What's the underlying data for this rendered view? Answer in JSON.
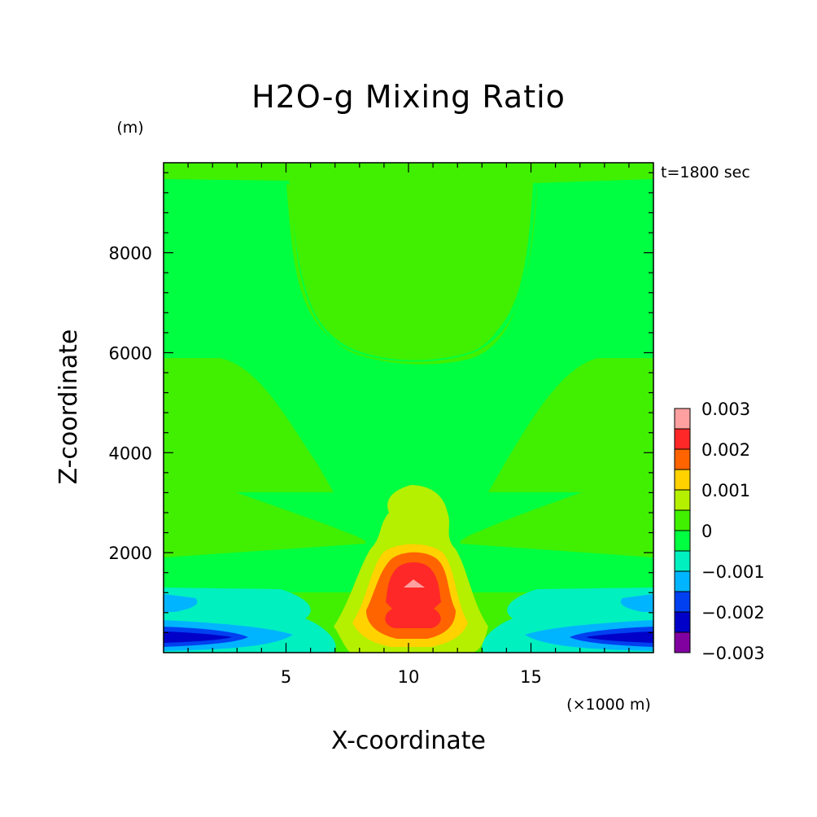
{
  "chart_data": {
    "type": "heatmap",
    "title": "H2O-g Mixing Ratio",
    "xlabel": "X-coordinate",
    "ylabel": "Z-coordinate",
    "x_unit": "(×1000 m)",
    "y_unit": "(m)",
    "time_label": "t=1800 sec",
    "xlim": [
      0,
      20
    ],
    "ylim": [
      0,
      9800
    ],
    "x_ticks": [
      5,
      10,
      15
    ],
    "y_ticks": [
      2000,
      4000,
      6000,
      8000
    ],
    "x_tick_labels": [
      "5",
      "10",
      "15"
    ],
    "y_tick_labels": [
      "2000",
      "4000",
      "6000",
      "8000"
    ],
    "grid": false,
    "legend_position": "right",
    "colorbar": {
      "levels": [
        -0.003,
        -0.0025,
        -0.002,
        -0.0015,
        -0.001,
        -0.0005,
        0,
        0.0005,
        0.001,
        0.0015,
        0.002,
        0.0025,
        0.003
      ],
      "colors": [
        "#8000a0",
        "#0000c8",
        "#0040f0",
        "#00b4ff",
        "#00f0c0",
        "#00ff40",
        "#40f000",
        "#b4f000",
        "#ffd200",
        "#ff6400",
        "#ff2828",
        "#ffa0a0"
      ],
      "tick_values": [
        -0.003,
        -0.002,
        -0.001,
        0,
        0.001,
        0.002,
        0.003
      ],
      "tick_labels": [
        "−0.003",
        "−0.002",
        "−0.001",
        "0",
        "0.001",
        "0.002",
        "0.003"
      ]
    },
    "regions": [
      {
        "level": "0 to 0.0005",
        "color": "#40f000",
        "x": [
          0,
          20
        ],
        "z": [
          0,
          9800
        ]
      },
      {
        "level": "-0.0005 to 0",
        "color": "#00ff40",
        "x": [
          0,
          20
        ],
        "z": [
          1900,
          9600
        ]
      },
      {
        "level": "0 to 0.0005",
        "color": "#40f000",
        "x": [
          5,
          15
        ],
        "z": [
          5900,
          9700
        ]
      },
      {
        "level": "-0.001 to -0.0005",
        "color": "#00f0c0",
        "x": [
          0,
          20
        ],
        "z": [
          0,
          1300
        ]
      },
      {
        "level": "-0.0015 to -0.001",
        "color": "#00b4ff",
        "x": [
          0,
          20
        ],
        "z": [
          0,
          1200
        ]
      },
      {
        "level": "-0.002 to -0.0015",
        "color": "#0040f0",
        "x": [
          0,
          20
        ],
        "z": [
          0,
          500
        ]
      },
      {
        "level": "-0.0025 to -0.002",
        "color": "#0000c8",
        "x": [
          0,
          20
        ],
        "z": [
          100,
          400
        ]
      },
      {
        "level": "0.0005 to 0.001",
        "color": "#b4f000",
        "x": [
          8,
          12
        ],
        "z": [
          300,
          3450
        ]
      },
      {
        "level": "0.001 to 0.0015",
        "color": "#ffd200",
        "x": [
          8.5,
          11.7
        ],
        "z": [
          250,
          2100
        ]
      },
      {
        "level": "0.0015 to 0.002",
        "color": "#ff6400",
        "x": [
          8.8,
          11.4
        ],
        "z": [
          300,
          2000
        ]
      },
      {
        "level": "0.002 to 0.0025",
        "color": "#ff2828",
        "x": [
          9.2,
          11
        ],
        "z": [
          400,
          1850
        ]
      },
      {
        "level": "0.0025 to 0.003",
        "color": "#ffa0a0",
        "x": [
          9.8,
          10.4
        ],
        "z": [
          1250,
          1500
        ]
      }
    ]
  }
}
